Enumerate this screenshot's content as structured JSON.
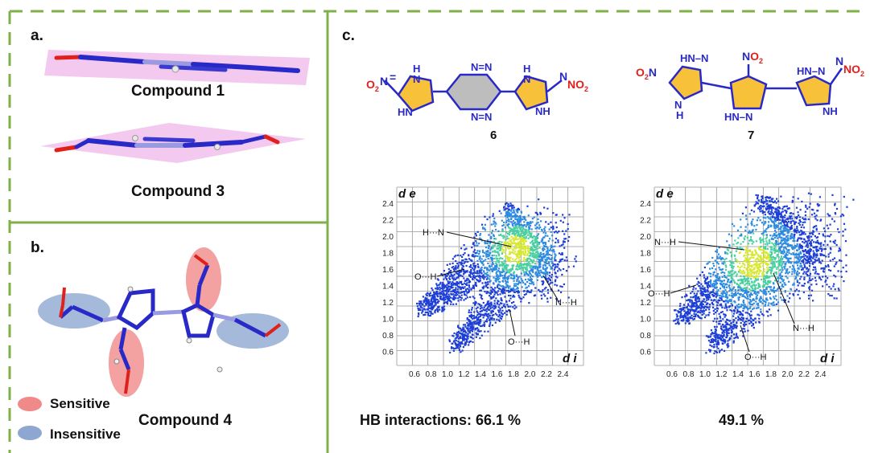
{
  "colors": {
    "frame_green": "#7fb04a",
    "sensitive": "#f08a8a",
    "insensitive": "#8ea7d1",
    "plane": "#f3c3ee",
    "bond_blue": "#2929c8",
    "triazole_fill": "#f7c23a",
    "tetrazine_fill": "#bdbdbd",
    "oxygen_red": "#e0201a"
  },
  "panel_a": {
    "label": "a.",
    "compound1": "Compound 1",
    "compound3": "Compound 3"
  },
  "panel_b": {
    "label": "b.",
    "compound": "Compound 4",
    "legend": [
      {
        "label": "Sensitive"
      },
      {
        "label": "Insensitive"
      }
    ]
  },
  "panel_c": {
    "label": "c.",
    "mol6": {
      "number": "6",
      "o2n_left": "O",
      "o2n_left_sub": "2",
      "n_eq_left": "N",
      "h_top": "H",
      "n_top": "N",
      "hn_bot": "HN",
      "n_eq": "N",
      "o2_right": "NO",
      "o2_right_sub": "2"
    },
    "mol7": {
      "number": "7",
      "o2n": "O",
      "no2": "NO",
      "sub": "2"
    },
    "plot_left": {
      "ylabel": "d e",
      "xlabel": "d i",
      "y_ticks": [
        "2.4",
        "2.2",
        "2.0",
        "1.8",
        "1.6",
        "1.4",
        "1.2",
        "1.0",
        "0.8",
        "0.6"
      ],
      "x_ticks": [
        "0.6",
        "0.8",
        "1.0",
        "1.2",
        "1.4",
        "1.6",
        "1.8",
        "2.0",
        "2.2",
        "2.4"
      ],
      "labels": [
        "H···N",
        "O···H",
        "N···H",
        "O···H"
      ]
    },
    "plot_right": {
      "ylabel": "d e",
      "xlabel": "d i",
      "y_ticks": [
        "2.4",
        "2.2",
        "2.0",
        "1.8",
        "1.6",
        "1.4",
        "1.2",
        "1.0",
        "0.8",
        "0.6"
      ],
      "x_ticks": [
        "0.6",
        "0.8",
        "1.0",
        "1.2",
        "1.4",
        "1.6",
        "1.8",
        "2.0",
        "2.2",
        "2.4"
      ],
      "labels": [
        "N···H",
        "O···H",
        "N···H",
        "O···H"
      ]
    },
    "hb_left": "HB interactions: 66.1 %",
    "hb_right": "49.1 %"
  }
}
